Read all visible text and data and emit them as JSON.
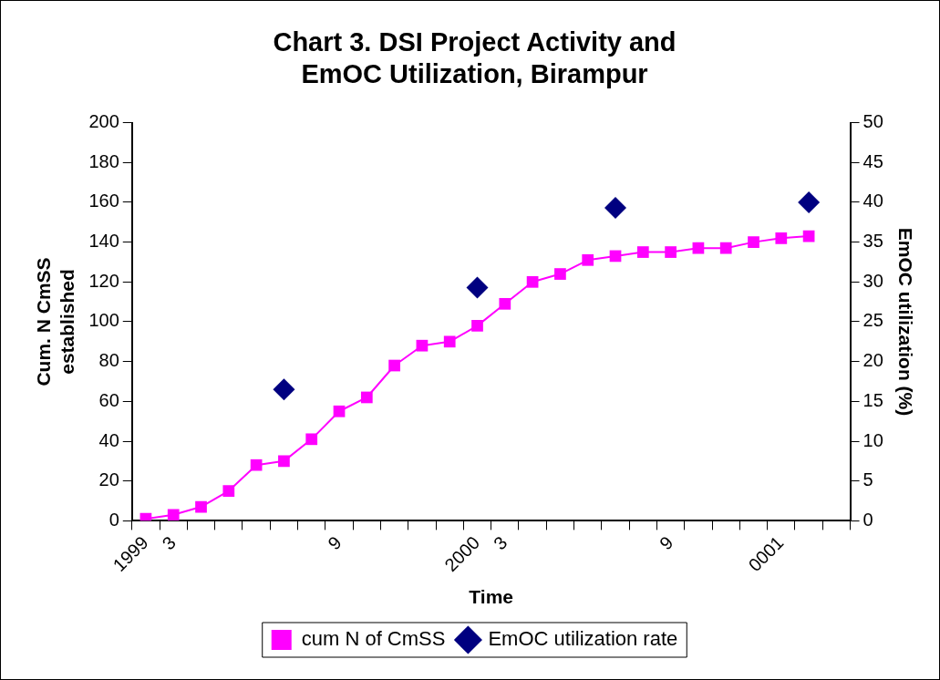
{
  "chart_data": {
    "type": "line",
    "title": "Chart 3. DSI Project Activity and\nEmOC Utilization, Birampur",
    "xlabel": "Time",
    "ylabel": "Cum. N CmSS\nestablished",
    "y2label": "EmOC utilization (%)",
    "categories": [
      "1999",
      "3",
      null,
      null,
      null,
      null,
      null,
      "9",
      null,
      null,
      null,
      null,
      "2000",
      "3",
      null,
      null,
      null,
      null,
      null,
      "9",
      null,
      null,
      null,
      "0001",
      null,
      null
    ],
    "series": [
      {
        "name": "cum N of CmSS",
        "color": "#ff00ff",
        "marker": "square",
        "values": [
          1,
          3,
          7,
          15,
          28,
          30,
          41,
          55,
          62,
          78,
          88,
          90,
          98,
          109,
          120,
          124,
          131,
          133,
          135,
          135,
          137,
          137,
          140,
          142,
          143,
          null
        ]
      },
      {
        "name": "EmOC utilization rate",
        "type": "scatter",
        "axis": "y2",
        "color": "#000080",
        "marker": "diamond",
        "values": [
          null,
          null,
          null,
          null,
          null,
          16.5,
          null,
          null,
          null,
          null,
          null,
          null,
          29.3,
          null,
          null,
          null,
          null,
          39.3,
          null,
          null,
          null,
          null,
          null,
          null,
          40,
          null
        ]
      }
    ],
    "ylim": [
      0,
      200
    ],
    "yticks": [
      0,
      20,
      40,
      60,
      80,
      100,
      120,
      140,
      160,
      180,
      200
    ],
    "y2lim": [
      0,
      50
    ],
    "y2ticks": [
      0,
      5,
      10,
      15,
      20,
      25,
      30,
      35,
      40,
      45,
      50
    ],
    "grid": false,
    "legend": "bottom"
  }
}
